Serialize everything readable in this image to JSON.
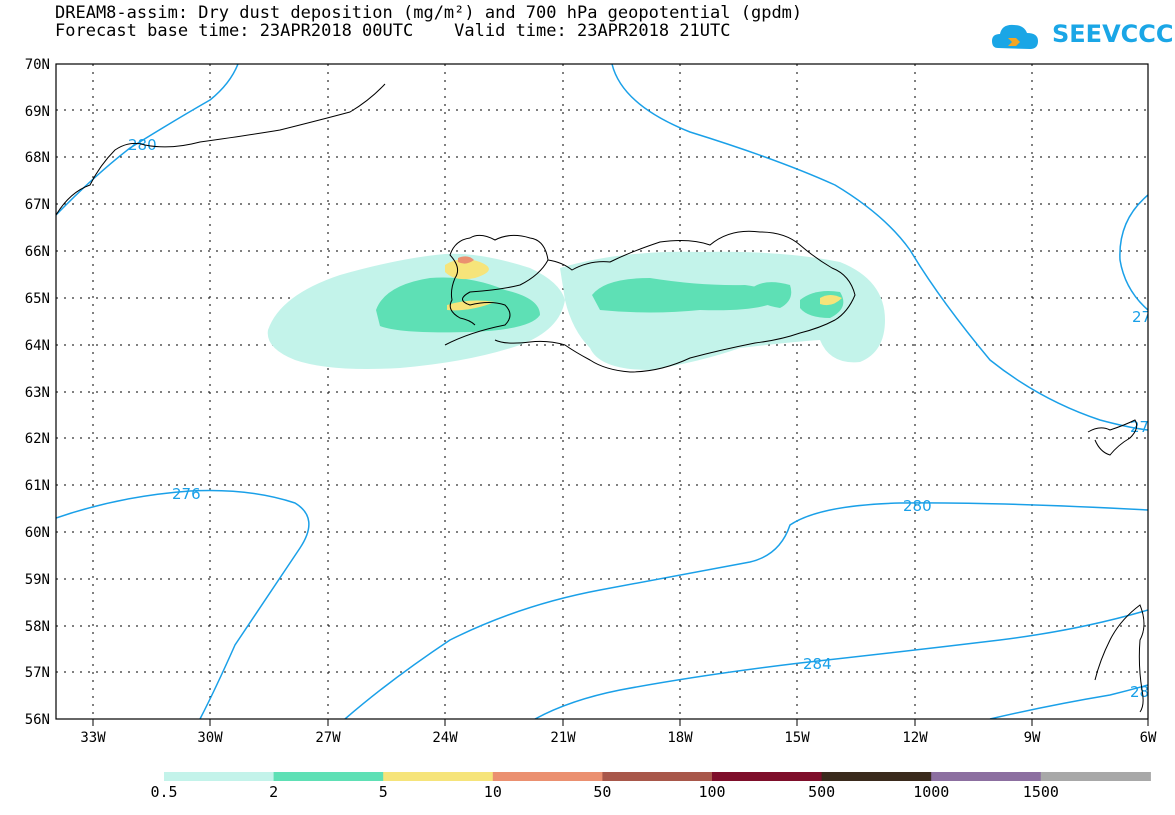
{
  "title": {
    "line1": "DREAM8-assim: Dry dust deposition (mg/m²) and 700 hPa geopotential (gpdm)",
    "line2": "Forecast base time: 23APR2018 00UTC    Valid time: 23APR2018 21UTC"
  },
  "logo": {
    "text": "SEEVCCC",
    "icon": "cloud-icon",
    "color": "#1aa6e6"
  },
  "axes": {
    "lat_labels": [
      "70N",
      "69N",
      "68N",
      "67N",
      "66N",
      "65N",
      "64N",
      "63N",
      "62N",
      "61N",
      "60N",
      "59N",
      "58N",
      "57N",
      "56N"
    ],
    "lon_labels": [
      "33W",
      "30W",
      "27W",
      "24W",
      "21W",
      "18W",
      "15W",
      "12W",
      "9W",
      "6W"
    ]
  },
  "contour_labels": [
    "280",
    "276",
    "280",
    "284",
    "27",
    "27",
    "28"
  ],
  "legend": {
    "thresholds": [
      "0.5",
      "2",
      "5",
      "10",
      "50",
      "100",
      "500",
      "1000",
      "1500"
    ],
    "colors": [
      "#c3f3ea",
      "#5ee0b5",
      "#f6e47a",
      "#eb9070",
      "#a8574a",
      "#7e0e2a",
      "#3a2a1c",
      "#8c6fa0",
      "#a8a8a8"
    ]
  },
  "colors": {
    "contour": "#1aa0e8",
    "coastline": "#000000",
    "grid": "#000000"
  }
}
